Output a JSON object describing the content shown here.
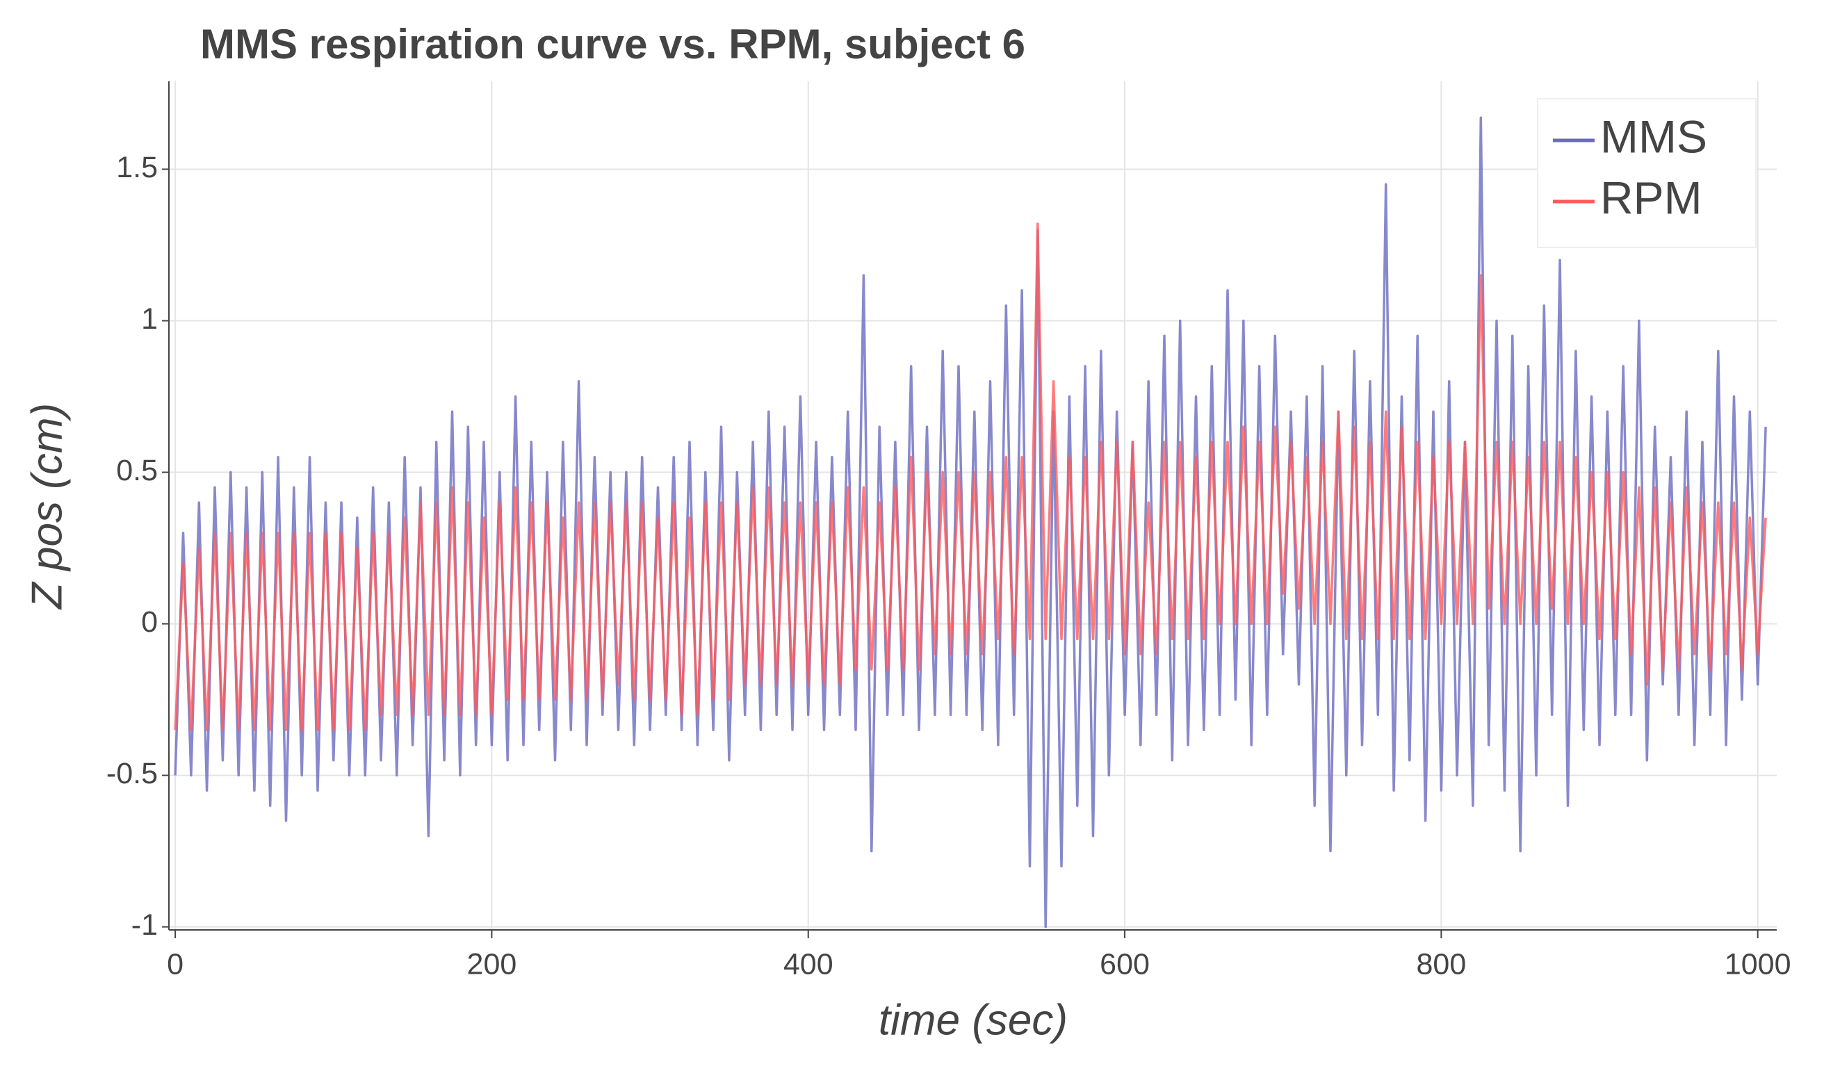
{
  "chart_data": {
    "type": "line",
    "title": "MMS respiration curve vs. RPM, subject 6",
    "xlabel": "time (sec)",
    "ylabel": "Z pos (cm)",
    "xlim": [
      -4,
      1012
    ],
    "ylim": [
      -1.01,
      1.79
    ],
    "xticks": [
      0,
      200,
      400,
      600,
      800,
      1000
    ],
    "yticks": [
      -1,
      -0.5,
      0,
      0.5,
      1,
      1.5
    ],
    "grid": true,
    "legend": "upper right",
    "x": [
      0,
      5,
      10,
      15,
      20,
      25,
      30,
      35,
      40,
      45,
      50,
      55,
      60,
      65,
      70,
      75,
      80,
      85,
      90,
      95,
      100,
      105,
      110,
      115,
      120,
      125,
      130,
      135,
      140,
      145,
      150,
      155,
      160,
      165,
      170,
      175,
      180,
      185,
      190,
      195,
      200,
      205,
      210,
      215,
      220,
      225,
      230,
      235,
      240,
      245,
      250,
      255,
      260,
      265,
      270,
      275,
      280,
      285,
      290,
      295,
      300,
      305,
      310,
      315,
      320,
      325,
      330,
      335,
      340,
      345,
      350,
      355,
      360,
      365,
      370,
      375,
      380,
      385,
      390,
      395,
      400,
      405,
      410,
      415,
      420,
      425,
      430,
      435,
      440,
      445,
      450,
      455,
      460,
      465,
      470,
      475,
      480,
      485,
      490,
      495,
      500,
      505,
      510,
      515,
      520,
      525,
      530,
      535,
      540,
      545,
      550,
      555,
      560,
      565,
      570,
      575,
      580,
      585,
      590,
      595,
      600,
      605,
      610,
      615,
      620,
      625,
      630,
      635,
      640,
      645,
      650,
      655,
      660,
      665,
      670,
      675,
      680,
      685,
      690,
      695,
      700,
      705,
      710,
      715,
      720,
      725,
      730,
      735,
      740,
      745,
      750,
      755,
      760,
      765,
      770,
      775,
      780,
      785,
      790,
      795,
      800,
      805,
      810,
      815,
      820,
      825,
      830,
      835,
      840,
      845,
      850,
      855,
      860,
      865,
      870,
      875,
      880,
      885,
      890,
      895,
      900,
      905,
      910,
      915,
      920,
      925,
      930,
      935,
      940,
      945,
      950,
      955,
      960,
      965,
      970,
      975,
      980,
      985,
      990,
      995,
      1000,
      1005
    ],
    "series": [
      {
        "name": "MMS",
        "color": "#6a6ac0",
        "values": [
          -0.5,
          0.3,
          -0.5,
          0.4,
          -0.55,
          0.45,
          -0.45,
          0.5,
          -0.5,
          0.45,
          -0.55,
          0.5,
          -0.6,
          0.55,
          -0.65,
          0.45,
          -0.5,
          0.55,
          -0.55,
          0.4,
          -0.45,
          0.4,
          -0.5,
          0.35,
          -0.5,
          0.45,
          -0.45,
          0.4,
          -0.5,
          0.55,
          -0.4,
          0.45,
          -0.7,
          0.6,
          -0.45,
          0.7,
          -0.5,
          0.65,
          -0.4,
          0.6,
          -0.4,
          0.5,
          -0.45,
          0.75,
          -0.4,
          0.6,
          -0.35,
          0.5,
          -0.45,
          0.6,
          -0.35,
          0.8,
          -0.4,
          0.55,
          -0.3,
          0.5,
          -0.35,
          0.5,
          -0.4,
          0.55,
          -0.35,
          0.45,
          -0.3,
          0.55,
          -0.35,
          0.6,
          -0.4,
          0.5,
          -0.35,
          0.65,
          -0.45,
          0.5,
          -0.3,
          0.6,
          -0.35,
          0.7,
          -0.3,
          0.65,
          -0.35,
          0.75,
          -0.3,
          0.6,
          -0.35,
          0.55,
          -0.3,
          0.7,
          -0.35,
          1.15,
          -0.75,
          0.65,
          -0.3,
          0.6,
          -0.3,
          0.85,
          -0.35,
          0.65,
          -0.3,
          0.9,
          -0.3,
          0.85,
          -0.3,
          0.7,
          -0.35,
          0.8,
          -0.4,
          1.05,
          -0.3,
          1.1,
          -0.8,
          1.3,
          -1.0,
          0.7,
          -0.8,
          0.75,
          -0.6,
          0.85,
          -0.7,
          0.9,
          -0.5,
          0.7,
          -0.3,
          0.6,
          -0.4,
          0.8,
          -0.3,
          0.95,
          -0.45,
          1.0,
          -0.4,
          0.75,
          -0.35,
          0.85,
          -0.3,
          1.1,
          -0.25,
          1.0,
          -0.4,
          0.85,
          -0.3,
          0.95,
          -0.1,
          0.7,
          -0.2,
          0.75,
          -0.6,
          0.85,
          -0.75,
          0.7,
          -0.5,
          0.9,
          -0.4,
          0.8,
          -0.3,
          1.45,
          -0.55,
          0.75,
          -0.45,
          0.95,
          -0.65,
          0.7,
          -0.55,
          0.8,
          -0.5,
          0.6,
          -0.6,
          1.67,
          -0.4,
          1.0,
          -0.55,
          0.95,
          -0.75,
          0.85,
          -0.5,
          1.05,
          -0.3,
          1.2,
          -0.6,
          0.9,
          -0.35,
          0.75,
          -0.4,
          0.7,
          -0.3,
          0.85,
          -0.3,
          1.0,
          -0.45,
          0.65,
          -0.2,
          0.55,
          -0.3,
          0.7,
          -0.4,
          0.6,
          -0.3,
          0.9,
          -0.4,
          0.75,
          -0.25,
          0.7,
          -0.2,
          0.65
        ]
      },
      {
        "name": "RPM",
        "color": "#ff5a5a",
        "values": [
          -0.35,
          0.2,
          -0.35,
          0.25,
          -0.35,
          0.3,
          -0.35,
          0.3,
          -0.35,
          0.3,
          -0.35,
          0.3,
          -0.35,
          0.3,
          -0.35,
          0.3,
          -0.35,
          0.3,
          -0.35,
          0.3,
          -0.35,
          0.3,
          -0.35,
          0.25,
          -0.35,
          0.3,
          -0.3,
          0.3,
          -0.3,
          0.35,
          -0.3,
          0.4,
          -0.3,
          0.4,
          -0.3,
          0.45,
          -0.3,
          0.4,
          -0.3,
          0.35,
          -0.3,
          0.4,
          -0.25,
          0.45,
          -0.25,
          0.4,
          -0.25,
          0.4,
          -0.25,
          0.35,
          -0.25,
          0.4,
          -0.25,
          0.4,
          -0.25,
          0.4,
          -0.2,
          0.4,
          -0.25,
          0.4,
          -0.25,
          0.35,
          -0.25,
          0.4,
          -0.3,
          0.35,
          -0.3,
          0.4,
          -0.25,
          0.4,
          -0.25,
          0.4,
          -0.2,
          0.45,
          -0.2,
          0.45,
          -0.2,
          0.4,
          -0.2,
          0.4,
          -0.2,
          0.4,
          -0.2,
          0.4,
          -0.2,
          0.45,
          -0.15,
          0.45,
          -0.15,
          0.4,
          -0.15,
          0.45,
          -0.15,
          0.55,
          -0.15,
          0.5,
          -0.1,
          0.5,
          -0.1,
          0.5,
          -0.1,
          0.5,
          -0.1,
          0.5,
          -0.05,
          0.55,
          -0.1,
          0.55,
          -0.05,
          1.32,
          -0.05,
          0.8,
          -0.05,
          0.55,
          -0.05,
          0.55,
          -0.05,
          0.6,
          -0.05,
          0.6,
          -0.1,
          0.6,
          -0.1,
          0.4,
          -0.1,
          0.6,
          -0.05,
          0.6,
          -0.05,
          0.55,
          -0.05,
          0.6,
          0.0,
          0.6,
          0.0,
          0.65,
          0.0,
          0.6,
          0.0,
          0.65,
          0.1,
          0.6,
          0.05,
          0.55,
          0.0,
          0.6,
          0.0,
          0.7,
          -0.05,
          0.65,
          -0.05,
          0.6,
          -0.05,
          0.7,
          -0.05,
          0.65,
          -0.05,
          0.6,
          -0.05,
          0.55,
          0.0,
          0.6,
          0.0,
          0.6,
          0.0,
          1.15,
          0.05,
          0.6,
          0.0,
          0.6,
          0.0,
          0.55,
          0.0,
          0.6,
          0.05,
          0.6,
          0.0,
          0.55,
          0.0,
          0.5,
          -0.05,
          0.5,
          -0.05,
          0.5,
          -0.1,
          0.45,
          -0.2,
          0.45,
          -0.15,
          0.4,
          -0.15,
          0.45,
          -0.1,
          0.4,
          -0.15,
          0.4,
          -0.1,
          0.4,
          -0.15,
          0.35,
          -0.1,
          0.35
        ]
      }
    ]
  }
}
